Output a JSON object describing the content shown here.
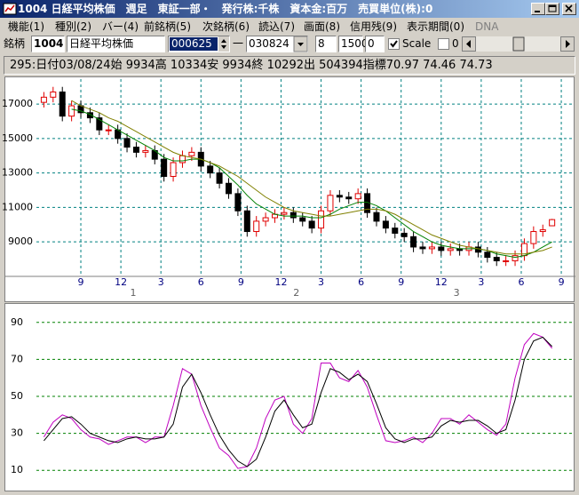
{
  "window": {
    "title": "1004 日経平均株価　週足　東証一部・　発行株:千株　資本金:百万　売買単位(株):0",
    "menu": [
      "機能(1)",
      "種別(2)",
      "バー(4)",
      "前銘柄(5)",
      "次銘柄(6)",
      "読込(7)",
      "画面(8)",
      "信用残(9)",
      "表示期間(0)",
      "DNA"
    ],
    "toolbar": {
      "label": "銘柄",
      "code": "1004",
      "name": "日経平均株価",
      "start": "000625",
      "dash": "一",
      "end": "030824",
      "field1": "8",
      "field2": "1500",
      "field3": "0",
      "scale": "Scale",
      "field4": "0"
    },
    "info": "295:日付03/08/24始 9934高 10334安 9934終 10292出 504394指標70.97  74.46  74.73"
  },
  "chart_data": [
    {
      "type": "candlestick",
      "x": [
        0,
        3,
        6,
        9,
        12,
        15,
        18,
        21,
        24,
        27,
        30,
        33,
        36,
        39,
        42,
        45,
        48,
        51,
        54,
        57,
        60,
        63,
        66,
        69,
        72,
        75,
        78,
        81,
        84,
        87,
        90,
        93,
        96,
        99,
        102,
        105,
        108,
        111,
        114,
        117,
        120,
        123,
        126,
        129,
        132,
        135,
        138,
        141,
        144,
        147,
        150,
        153,
        156,
        159,
        162,
        165
      ],
      "open": [
        17100,
        17400,
        17700,
        16300,
        16900,
        16500,
        16200,
        15500,
        15500,
        15000,
        14500,
        14200,
        14300,
        13800,
        12800,
        13600,
        14000,
        14200,
        13400,
        13000,
        12400,
        11800,
        10800,
        9600,
        10200,
        10400,
        10600,
        10700,
        10400,
        10200,
        9800,
        10800,
        11700,
        11600,
        11500,
        11800,
        10700,
        10200,
        9800,
        9500,
        9300,
        8700,
        8600,
        8700,
        8500,
        8600,
        8500,
        8700,
        8400,
        8100,
        7900,
        7900,
        8200,
        8900,
        9600,
        9934
      ],
      "high": [
        17700,
        18000,
        18000,
        17200,
        17200,
        16800,
        16500,
        15800,
        15800,
        15300,
        14800,
        14600,
        14600,
        14100,
        13900,
        14300,
        14500,
        14500,
        13700,
        13300,
        12700,
        12100,
        11100,
        10500,
        10700,
        10900,
        11000,
        11000,
        10700,
        10500,
        11100,
        12000,
        12000,
        11900,
        12100,
        12100,
        11000,
        10500,
        10100,
        9800,
        9600,
        9000,
        9000,
        9000,
        8900,
        8900,
        9000,
        9000,
        8700,
        8400,
        8200,
        8500,
        9200,
        9900,
        10000,
        10334
      ],
      "low": [
        16800,
        17100,
        16000,
        16000,
        16200,
        15900,
        15200,
        15200,
        14700,
        14200,
        13900,
        13900,
        13500,
        12500,
        12500,
        13300,
        13700,
        13100,
        12700,
        12100,
        11500,
        10500,
        9300,
        9300,
        9900,
        10100,
        10300,
        10100,
        9900,
        9500,
        9500,
        10500,
        11300,
        11200,
        11200,
        10400,
        9900,
        9500,
        9200,
        9000,
        8400,
        8300,
        8300,
        8200,
        8200,
        8200,
        8200,
        8100,
        7800,
        7600,
        7600,
        7600,
        7900,
        8600,
        9300,
        9934
      ],
      "close": [
        17400,
        17700,
        16300,
        16900,
        16500,
        16200,
        15500,
        15500,
        15000,
        14500,
        14200,
        14300,
        13800,
        12800,
        13600,
        14000,
        14200,
        13400,
        13000,
        12400,
        11800,
        10800,
        9600,
        10200,
        10400,
        10600,
        10700,
        10400,
        10200,
        9800,
        10800,
        11700,
        11600,
        11500,
        11800,
        10700,
        10200,
        9800,
        9500,
        9300,
        8700,
        8600,
        8700,
        8500,
        8600,
        8500,
        8700,
        8400,
        8100,
        7900,
        7900,
        8200,
        8900,
        9600,
        9700,
        10292
      ],
      "up_color": "#e00000",
      "down_color": "#000000",
      "series": [
        {
          "color": "#008000",
          "values": [
            null,
            null,
            null,
            16700,
            16600,
            16400,
            16100,
            15800,
            15500,
            15200,
            14900,
            14600,
            14300,
            13900,
            13700,
            13700,
            13800,
            13800,
            13600,
            13300,
            12800,
            12300,
            11700,
            11200,
            10900,
            10600,
            10500,
            10500,
            10500,
            10400,
            10400,
            10600,
            10900,
            11100,
            11300,
            11300,
            11100,
            10800,
            10400,
            10000,
            9600,
            9300,
            9000,
            8800,
            8700,
            8600,
            8600,
            8600,
            8500,
            8300,
            8200,
            8100,
            8200,
            8400,
            8700,
            9000
          ]
        },
        {
          "color": "#808000",
          "values": [
            null,
            null,
            null,
            17200,
            16900,
            16700,
            16500,
            16200,
            16000,
            15700,
            15400,
            15100,
            14800,
            14500,
            14200,
            14000,
            13900,
            13800,
            13600,
            13400,
            13100,
            12800,
            12400,
            12000,
            11600,
            11300,
            11000,
            10800,
            10700,
            10600,
            10500,
            10500,
            10600,
            10700,
            10800,
            10900,
            10900,
            10800,
            10600,
            10300,
            10000,
            9700,
            9400,
            9200,
            9000,
            8800,
            8700,
            8600,
            8500,
            8400,
            8300,
            8300,
            8300,
            8400,
            8500,
            8700
          ]
        }
      ],
      "xlim": [
        -3,
        170
      ],
      "ylim": [
        7150,
        18450
      ],
      "yticks": [
        17000,
        15000,
        13000,
        11000,
        9000
      ],
      "xticks": [
        {
          "value": 12,
          "label": "9"
        },
        {
          "value": 25,
          "label": "12"
        },
        {
          "value": 38,
          "label": "3"
        },
        {
          "value": 51,
          "label": "6"
        },
        {
          "value": 64,
          "label": "9"
        },
        {
          "value": 77,
          "label": "12"
        },
        {
          "value": 90,
          "label": "3"
        },
        {
          "value": 103,
          "label": "6"
        },
        {
          "value": 116,
          "label": "9"
        },
        {
          "value": 129,
          "label": "12"
        },
        {
          "value": 142,
          "label": "3"
        },
        {
          "value": 155,
          "label": "6"
        },
        {
          "value": 168,
          "label": "9"
        }
      ],
      "period_ticks": [
        {
          "value": 29,
          "label": "1"
        },
        {
          "value": 82,
          "label": "2"
        },
        {
          "value": 134,
          "label": "3"
        }
      ],
      "grid": true,
      "grid_color": "#008080"
    },
    {
      "type": "line",
      "x": [
        0,
        3,
        6,
        9,
        12,
        15,
        18,
        21,
        24,
        27,
        30,
        33,
        36,
        39,
        42,
        45,
        48,
        51,
        54,
        57,
        60,
        63,
        66,
        69,
        72,
        75,
        78,
        81,
        84,
        87,
        90,
        93,
        96,
        99,
        102,
        105,
        108,
        111,
        114,
        117,
        120,
        123,
        126,
        129,
        132,
        135,
        138,
        141,
        144,
        147,
        150,
        153,
        156,
        159,
        162,
        165
      ],
      "series": [
        {
          "color": "#c000c0",
          "values": [
            28,
            36,
            40,
            38,
            32,
            28,
            27,
            24,
            26,
            28,
            28,
            25,
            28,
            28,
            45,
            65,
            62,
            45,
            33,
            22,
            18,
            11,
            12,
            22,
            38,
            48,
            50,
            35,
            30,
            38,
            68,
            68,
            60,
            58,
            64,
            55,
            40,
            26,
            25,
            26,
            28,
            25,
            30,
            38,
            38,
            35,
            40,
            36,
            32,
            29,
            35,
            60,
            78,
            84,
            82,
            76
          ]
        },
        {
          "color": "#000000",
          "values": [
            26,
            32,
            38,
            39,
            35,
            30,
            28,
            26,
            25,
            27,
            28,
            27,
            27,
            28,
            35,
            55,
            62,
            52,
            40,
            29,
            21,
            15,
            12,
            16,
            28,
            42,
            48,
            40,
            33,
            35,
            52,
            65,
            63,
            59,
            62,
            58,
            46,
            33,
            27,
            25,
            27,
            27,
            28,
            34,
            37,
            36,
            37,
            37,
            34,
            30,
            32,
            48,
            70,
            80,
            82,
            77
          ]
        }
      ],
      "xlim": [
        -3,
        170
      ],
      "ylim": [
        0,
        100
      ],
      "yticks": [
        90,
        70,
        50,
        30,
        10
      ],
      "grid": true,
      "grid_color": "#008000"
    }
  ]
}
